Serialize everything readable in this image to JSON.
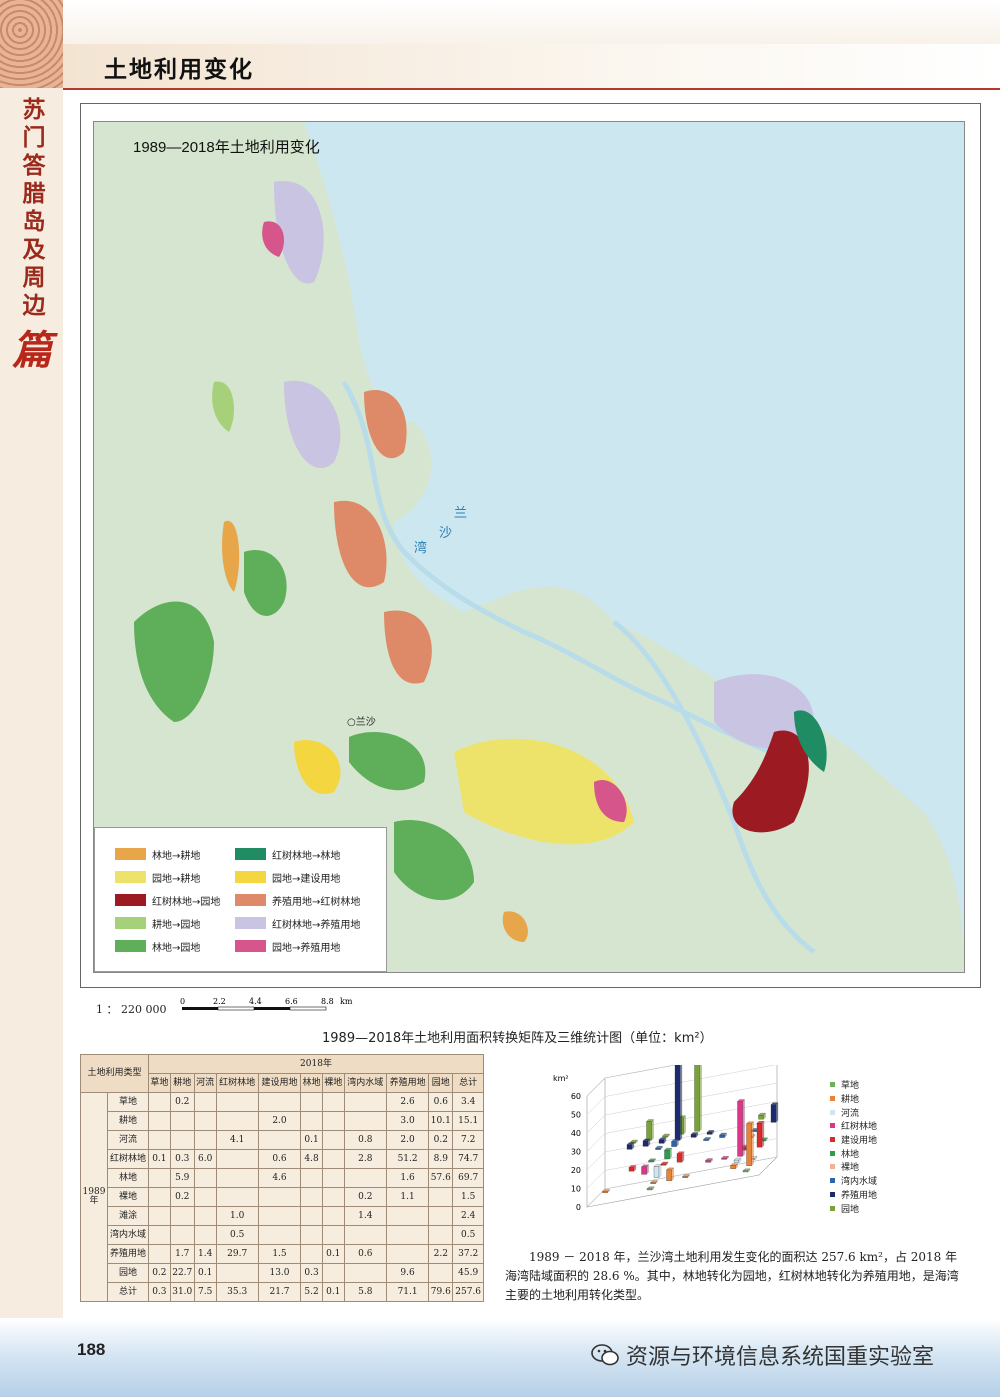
{
  "header": {
    "section_title": "土地利用变化",
    "vertical_title": "苏门答腊岛及周边",
    "vertical_suffix": "篇"
  },
  "map": {
    "title": "1989—2018年土地利用变化",
    "bay_label_1": "兰",
    "bay_label_2": "沙",
    "bay_label_3": "湾",
    "town_label": "○兰沙",
    "legend": [
      {
        "label": "林地→耕地",
        "color": "#e8a64a"
      },
      {
        "label": "红树林地→林地",
        "color": "#1f8c64"
      },
      {
        "label": "园地→耕地",
        "color": "#eee36a"
      },
      {
        "label": "园地→建设用地",
        "color": "#f4d640"
      },
      {
        "label": "红树林地→园地",
        "color": "#9c1a22"
      },
      {
        "label": "养殖用地→红树林地",
        "color": "#de8a68"
      },
      {
        "label": "耕地→园地",
        "color": "#a6d17a"
      },
      {
        "label": "红树林地→养殖用地",
        "color": "#c8c4e2"
      },
      {
        "label": "林地→园地",
        "color": "#5fae5a"
      },
      {
        "label": "园地→养殖用地",
        "color": "#d6558a"
      }
    ],
    "scale": "1 ： 220 000",
    "scale_ticks": [
      "0",
      "2.2",
      "4.4",
      "6.6",
      "8.8"
    ],
    "scale_unit": "km"
  },
  "matrix": {
    "title": "1989—2018年土地利用面积转换矩阵及三维统计图（单位：km²）",
    "corner_label": "土地利用类型",
    "col_group": "2018年",
    "row_group": "1989年",
    "columns": [
      "草地",
      "耕地",
      "河流",
      "红树林地",
      "建设用地",
      "林地",
      "裸地",
      "湾内水域",
      "养殖用地",
      "园地",
      "总计"
    ],
    "rows": [
      {
        "name": "草地",
        "cells": [
          "",
          "0.2",
          "",
          "",
          "",
          "",
          "",
          "",
          "2.6",
          "0.6",
          "3.4"
        ]
      },
      {
        "name": "耕地",
        "cells": [
          "",
          "",
          "",
          "",
          "2.0",
          "",
          "",
          "",
          "3.0",
          "10.1",
          "15.1"
        ]
      },
      {
        "name": "河流",
        "cells": [
          "",
          "",
          "",
          "4.1",
          "",
          "0.1",
          "",
          "0.8",
          "2.0",
          "0.2",
          "7.2"
        ]
      },
      {
        "name": "红树林地",
        "cells": [
          "0.1",
          "0.3",
          "6.0",
          "",
          "0.6",
          "4.8",
          "",
          "2.8",
          "51.2",
          "8.9",
          "74.7"
        ]
      },
      {
        "name": "林地",
        "cells": [
          "",
          "5.9",
          "",
          "",
          "4.6",
          "",
          "",
          "",
          "1.6",
          "57.6",
          "69.7"
        ]
      },
      {
        "name": "裸地",
        "cells": [
          "",
          "0.2",
          "",
          "",
          "",
          "",
          "",
          "0.2",
          "1.1",
          "",
          "1.5"
        ]
      },
      {
        "name": "滩涂",
        "cells": [
          "",
          "",
          "",
          "1.0",
          "",
          "",
          "",
          "1.4",
          "",
          "",
          "2.4"
        ]
      },
      {
        "name": "湾内水域",
        "cells": [
          "",
          "",
          "",
          "0.5",
          "",
          "",
          "",
          "",
          "",
          "",
          "0.5"
        ]
      },
      {
        "name": "养殖用地",
        "cells": [
          "",
          "1.7",
          "1.4",
          "29.7",
          "1.5",
          "",
          "0.1",
          "0.6",
          "",
          "2.2",
          "37.2"
        ]
      },
      {
        "name": "园地",
        "cells": [
          "0.2",
          "22.7",
          "0.1",
          "",
          "13.0",
          "0.3",
          "",
          "",
          "9.6",
          "",
          "45.9"
        ]
      },
      {
        "name": "总计",
        "cells": [
          "0.3",
          "31.0",
          "7.5",
          "35.3",
          "21.7",
          "5.2",
          "0.1",
          "5.8",
          "71.1",
          "79.6",
          "257.6"
        ]
      }
    ]
  },
  "chart_data": {
    "type": "bar",
    "ylabel": "km²",
    "ylim": [
      0,
      60
    ],
    "yticks": [
      "60",
      "50",
      "40",
      "30",
      "20",
      "10",
      "0"
    ],
    "series": [
      {
        "name": "草地",
        "color": "#6fb05a"
      },
      {
        "name": "耕地",
        "color": "#e8843a"
      },
      {
        "name": "河流",
        "color": "#cfe6ef"
      },
      {
        "name": "红树林地",
        "color": "#e2338a"
      },
      {
        "name": "建设用地",
        "color": "#d92b2b"
      },
      {
        "name": "林地",
        "color": "#2e9c4a"
      },
      {
        "name": "裸地",
        "color": "#f0b494"
      },
      {
        "name": "湾内水域",
        "color": "#2f64a8"
      },
      {
        "name": "养殖用地",
        "color": "#1c2a6e"
      },
      {
        "name": "园地",
        "color": "#7aa23a"
      }
    ]
  },
  "paragraph": "1989 － 2018 年，兰沙湾土地利用发生变化的面积达 257.6 km²，占 2018 年海湾陆域面积的 28.6 %。其中，林地转化为园地，红树林地转化为养殖用地，是海湾主要的土地利用转化类型。",
  "footer": {
    "page_number": "188",
    "watermark": "资源与环境信息系统国重实验室"
  }
}
